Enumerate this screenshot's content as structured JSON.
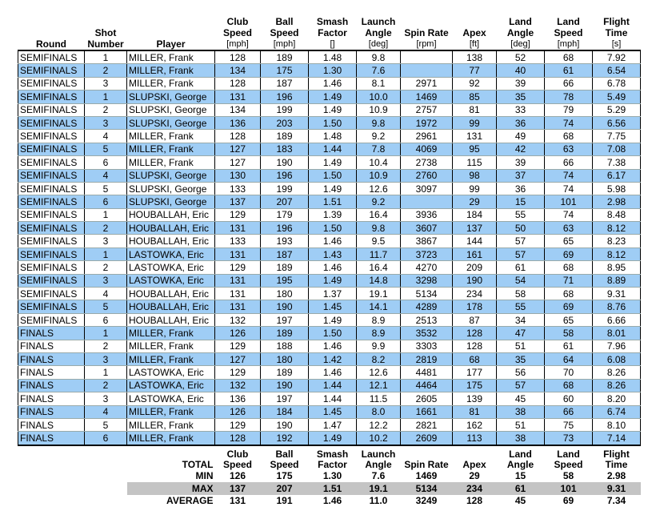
{
  "table": {
    "columns": [
      {
        "name": "Round",
        "unit": null
      },
      {
        "name": "Shot Number",
        "unit": null
      },
      {
        "name": "Player",
        "unit": null
      },
      {
        "name": "Club Speed",
        "unit": "[mph]"
      },
      {
        "name": "Ball Speed",
        "unit": "[mph]"
      },
      {
        "name": "Smash Factor",
        "unit": "[]"
      },
      {
        "name": "Launch Angle",
        "unit": "[deg]"
      },
      {
        "name": "Spin Rate",
        "unit": "[rpm]"
      },
      {
        "name": "Apex",
        "unit": "[ft]"
      },
      {
        "name": "Land Angle",
        "unit": "[deg]"
      },
      {
        "name": "Land Speed",
        "unit": "[mph]"
      },
      {
        "name": "Flight Time",
        "unit": "[s]"
      }
    ],
    "rows": [
      [
        "SEMIFINALS",
        "1",
        "MILLER, Frank",
        "128",
        "189",
        "1.48",
        "9.8",
        null,
        "138",
        "52",
        "68",
        "7.92"
      ],
      [
        "SEMIFINALS",
        "2",
        "MILLER, Frank",
        "134",
        "175",
        "1.30",
        "7.6",
        null,
        "77",
        "40",
        "61",
        "6.54"
      ],
      [
        "SEMIFINALS",
        "3",
        "MILLER, Frank",
        "128",
        "187",
        "1.46",
        "8.1",
        "2971",
        "92",
        "39",
        "66",
        "6.78"
      ],
      [
        "SEMIFINALS",
        "1",
        "SLUPSKI, George",
        "131",
        "196",
        "1.49",
        "10.0",
        "1469",
        "85",
        "35",
        "78",
        "5.49"
      ],
      [
        "SEMIFINALS",
        "2",
        "SLUPSKI, George",
        "134",
        "199",
        "1.49",
        "10.9",
        "2757",
        "81",
        "33",
        "79",
        "5.29"
      ],
      [
        "SEMIFINALS",
        "3",
        "SLUPSKI, George",
        "136",
        "203",
        "1.50",
        "9.8",
        "1972",
        "99",
        "36",
        "74",
        "6.56"
      ],
      [
        "SEMIFINALS",
        "4",
        "MILLER, Frank",
        "128",
        "189",
        "1.48",
        "9.2",
        "2961",
        "131",
        "49",
        "68",
        "7.75"
      ],
      [
        "SEMIFINALS",
        "5",
        "MILLER, Frank",
        "127",
        "183",
        "1.44",
        "7.8",
        "4069",
        "95",
        "42",
        "63",
        "7.08"
      ],
      [
        "SEMIFINALS",
        "6",
        "MILLER, Frank",
        "127",
        "190",
        "1.49",
        "10.4",
        "2738",
        "115",
        "39",
        "66",
        "7.38"
      ],
      [
        "SEMIFINALS",
        "4",
        "SLUPSKI, George",
        "130",
        "196",
        "1.50",
        "10.9",
        "2760",
        "98",
        "37",
        "74",
        "6.17"
      ],
      [
        "SEMIFINALS",
        "5",
        "SLUPSKI, George",
        "133",
        "199",
        "1.49",
        "12.6",
        "3097",
        "99",
        "36",
        "74",
        "5.98"
      ],
      [
        "SEMIFINALS",
        "6",
        "SLUPSKI, George",
        "137",
        "207",
        "1.51",
        "9.2",
        null,
        "29",
        "15",
        "101",
        "2.98"
      ],
      [
        "SEMIFINALS",
        "1",
        "HOUBALLAH, Eric",
        "129",
        "179",
        "1.39",
        "16.4",
        "3936",
        "184",
        "55",
        "74",
        "8.48"
      ],
      [
        "SEMIFINALS",
        "2",
        "HOUBALLAH, Eric",
        "131",
        "196",
        "1.50",
        "9.8",
        "3607",
        "137",
        "50",
        "63",
        "8.12"
      ],
      [
        "SEMIFINALS",
        "3",
        "HOUBALLAH, Eric",
        "133",
        "193",
        "1.46",
        "9.5",
        "3867",
        "144",
        "57",
        "65",
        "8.23"
      ],
      [
        "SEMIFINALS",
        "1",
        "LASTOWKA, Eric",
        "131",
        "187",
        "1.43",
        "11.7",
        "3723",
        "161",
        "57",
        "69",
        "8.12"
      ],
      [
        "SEMIFINALS",
        "2",
        "LASTOWKA, Eric",
        "129",
        "189",
        "1.46",
        "16.4",
        "4270",
        "209",
        "61",
        "68",
        "8.95"
      ],
      [
        "SEMIFINALS",
        "3",
        "LASTOWKA, Eric",
        "131",
        "195",
        "1.49",
        "14.8",
        "3298",
        "190",
        "54",
        "71",
        "8.89"
      ],
      [
        "SEMIFINALS",
        "4",
        "HOUBALLAH, Eric",
        "131",
        "180",
        "1.37",
        "19.1",
        "5134",
        "234",
        "58",
        "68",
        "9.31"
      ],
      [
        "SEMIFINALS",
        "5",
        "HOUBALLAH, Eric",
        "131",
        "190",
        "1.45",
        "14.1",
        "4289",
        "178",
        "55",
        "69",
        "8.76"
      ],
      [
        "SEMIFINALS",
        "6",
        "HOUBALLAH, Eric",
        "132",
        "197",
        "1.49",
        "8.9",
        "2513",
        "87",
        "34",
        "65",
        "6.66"
      ],
      [
        "FINALS",
        "1",
        "MILLER, Frank",
        "126",
        "189",
        "1.50",
        "8.9",
        "3532",
        "128",
        "47",
        "58",
        "8.01"
      ],
      [
        "FINALS",
        "2",
        "MILLER, Frank",
        "129",
        "188",
        "1.46",
        "9.9",
        "3303",
        "128",
        "51",
        "61",
        "7.96"
      ],
      [
        "FINALS",
        "3",
        "MILLER, Frank",
        "127",
        "180",
        "1.42",
        "8.2",
        "2819",
        "68",
        "35",
        "64",
        "6.08"
      ],
      [
        "FINALS",
        "1",
        "LASTOWKA, Eric",
        "129",
        "189",
        "1.46",
        "12.6",
        "4481",
        "177",
        "56",
        "70",
        "8.26"
      ],
      [
        "FINALS",
        "2",
        "LASTOWKA, Eric",
        "132",
        "190",
        "1.44",
        "12.1",
        "4464",
        "175",
        "57",
        "68",
        "8.26"
      ],
      [
        "FINALS",
        "3",
        "LASTOWKA, Eric",
        "136",
        "197",
        "1.44",
        "11.5",
        "2605",
        "139",
        "45",
        "60",
        "8.20"
      ],
      [
        "FINALS",
        "4",
        "MILLER, Frank",
        "126",
        "184",
        "1.45",
        "8.0",
        "1661",
        "81",
        "38",
        "66",
        "6.74"
      ],
      [
        "FINALS",
        "5",
        "MILLER, Frank",
        "129",
        "190",
        "1.47",
        "12.2",
        "2821",
        "162",
        "51",
        "75",
        "8.10"
      ],
      [
        "FINALS",
        "6",
        "MILLER, Frank",
        "128",
        "192",
        "1.49",
        "10.2",
        "2609",
        "113",
        "38",
        "73",
        "7.14"
      ]
    ]
  },
  "footer": {
    "label": "TOTAL",
    "stats": [
      {
        "label": "MIN",
        "values": [
          "126",
          "175",
          "1.30",
          "7.6",
          "1469",
          "29",
          "15",
          "58",
          "2.98"
        ]
      },
      {
        "label": "MAX",
        "values": [
          "137",
          "207",
          "1.51",
          "19.1",
          "5134",
          "234",
          "61",
          "101",
          "9.31"
        ]
      },
      {
        "label": "AVERAGE",
        "values": [
          "131",
          "191",
          "1.46",
          "11.0",
          "3249",
          "128",
          "45",
          "69",
          "7.34"
        ]
      }
    ]
  }
}
